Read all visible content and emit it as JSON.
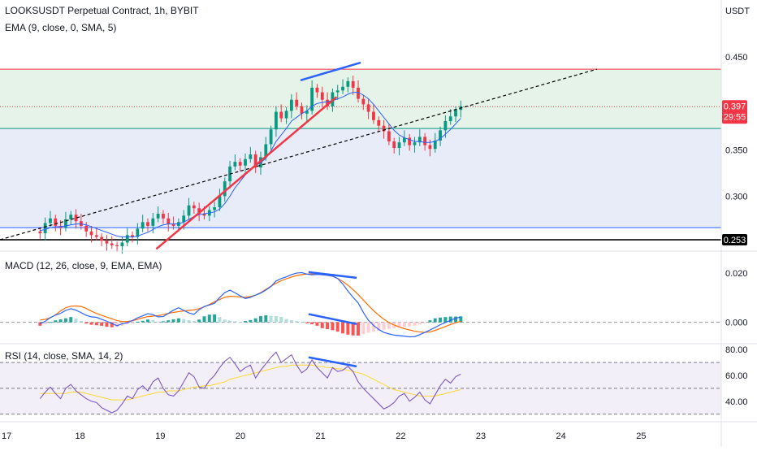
{
  "chart_data": {
    "type": "candlestick",
    "symbol_title": "LOOKSUSDT Perpetual Contract, 1h, BYBIT",
    "ema_legend": "EMA (9, close, 0, SMA, 5)",
    "price_axis_unit": "USDT",
    "price_ticks": [
      "0.450",
      "0.400",
      "0.350",
      "0.300"
    ],
    "price_tick_values": [
      0.45,
      0.4,
      0.35,
      0.3
    ],
    "price_range": [
      0.2425,
      0.4695
    ],
    "current_price_label": "0.397",
    "current_price": 0.3965,
    "countdown_label": "29:55",
    "support_label": "0.253",
    "support_price": 0.253,
    "x_range": [
      17.0,
      26.0
    ],
    "x_ticks": [
      "17",
      "18",
      "19",
      "20",
      "21",
      "22",
      "23",
      "24",
      "25"
    ],
    "x_tick_values": [
      17,
      18,
      19,
      20,
      21,
      22,
      23,
      24,
      25
    ],
    "zones": [
      {
        "name": "upper",
        "from": 0.373,
        "to": 0.437,
        "color": "#e5f3e8"
      },
      {
        "name": "lower",
        "from": 0.266,
        "to": 0.373,
        "color": "#e8ebf8"
      }
    ],
    "hlines": [
      {
        "price": 0.437,
        "color": "#f23645"
      },
      {
        "price": 0.373,
        "color": "#089981"
      },
      {
        "price": 0.266,
        "color": "#2962ff"
      },
      {
        "price": 0.253,
        "color": "#000000"
      },
      {
        "price": 0.3965,
        "color": "#f23645",
        "dotted": true
      }
    ],
    "closes": [
      0.26,
      0.271,
      0.276,
      0.268,
      0.266,
      0.275,
      0.28,
      0.273,
      0.268,
      0.262,
      0.258,
      0.256,
      0.252,
      0.249,
      0.247,
      0.246,
      0.25,
      0.258,
      0.256,
      0.265,
      0.272,
      0.268,
      0.276,
      0.281,
      0.276,
      0.27,
      0.268,
      0.272,
      0.279,
      0.29,
      0.287,
      0.281,
      0.279,
      0.285,
      0.288,
      0.3,
      0.316,
      0.332,
      0.337,
      0.333,
      0.34,
      0.345,
      0.331,
      0.342,
      0.356,
      0.372,
      0.391,
      0.384,
      0.392,
      0.404,
      0.397,
      0.389,
      0.392,
      0.417,
      0.412,
      0.404,
      0.397,
      0.412,
      0.414,
      0.418,
      0.424,
      0.417,
      0.405,
      0.399,
      0.391,
      0.382,
      0.376,
      0.37,
      0.359,
      0.352,
      0.358,
      0.363,
      0.355,
      0.358,
      0.364,
      0.355,
      0.351,
      0.36,
      0.371,
      0.381,
      0.386,
      0.393,
      0.397
    ],
    "ema": [
      0.263,
      0.264,
      0.266,
      0.267,
      0.267,
      0.268,
      0.269,
      0.27,
      0.27,
      0.269,
      0.267,
      0.265,
      0.263,
      0.261,
      0.259,
      0.257,
      0.256,
      0.256,
      0.256,
      0.257,
      0.259,
      0.261,
      0.264,
      0.267,
      0.269,
      0.27,
      0.27,
      0.27,
      0.272,
      0.275,
      0.278,
      0.28,
      0.281,
      0.282,
      0.283,
      0.286,
      0.292,
      0.3,
      0.309,
      0.316,
      0.323,
      0.329,
      0.333,
      0.336,
      0.341,
      0.349,
      0.359,
      0.366,
      0.373,
      0.381,
      0.385,
      0.389,
      0.392,
      0.397,
      0.4,
      0.401,
      0.402,
      0.403,
      0.405,
      0.407,
      0.41,
      0.412,
      0.412,
      0.409,
      0.405,
      0.399,
      0.392,
      0.385,
      0.378,
      0.371,
      0.366,
      0.363,
      0.361,
      0.359,
      0.359,
      0.358,
      0.358,
      0.359,
      0.362,
      0.367,
      0.372,
      0.378,
      0.384
    ],
    "trendline_drawings": [
      {
        "name": "dashed-uptrend-line",
        "points": [
          [
            17.0,
            0.253
          ],
          [
            24.45,
            0.437
          ]
        ],
        "color": "#000000",
        "dashed": true
      },
      {
        "name": "red-support-line",
        "points": [
          [
            18.95,
            0.243
          ],
          [
            21.2,
            0.407
          ]
        ],
        "color": "#f23645"
      },
      {
        "name": "blue-price-high-line",
        "points": [
          [
            20.75,
            0.425
          ],
          [
            21.5,
            0.444
          ]
        ],
        "color": "#2962ff"
      }
    ],
    "macd": {
      "legend": "MACD (12, 26, close, 9, EMA, EMA)",
      "ticks": [
        "0.020",
        "0.000"
      ],
      "tick_values": [
        0.02,
        0.0
      ],
      "range": [
        -0.0077,
        0.0265
      ],
      "macd_line": [
        -0.0006,
        0.0004,
        0.0019,
        0.0029,
        0.0036,
        0.0048,
        0.0055,
        0.0049,
        0.0039,
        0.0028,
        0.0022,
        0.002,
        0.0012,
        0.0004,
        -0.0005,
        -0.0014,
        -0.0006,
        -0.0002,
        0.0007,
        0.0018,
        0.0026,
        0.0035,
        0.0031,
        0.0022,
        0.0023,
        0.0036,
        0.0049,
        0.0059,
        0.0048,
        0.0038,
        0.0032,
        0.0051,
        0.0064,
        0.007,
        0.0077,
        0.01,
        0.012,
        0.013,
        0.0119,
        0.0107,
        0.0096,
        0.0101,
        0.011,
        0.0118,
        0.013,
        0.0145,
        0.0167,
        0.0177,
        0.0184,
        0.0193,
        0.0199,
        0.0201,
        0.0195,
        0.0192,
        0.0194,
        0.0192,
        0.019,
        0.0187,
        0.0177,
        0.0155,
        0.0126,
        0.0101,
        0.0078,
        0.004,
        0.0008,
        -0.0013,
        -0.0029,
        -0.0041,
        -0.0047,
        -0.0052,
        -0.0054,
        -0.0056,
        -0.0059,
        -0.0058,
        -0.005,
        -0.0041,
        -0.0031,
        -0.0021,
        -0.001,
        -0.0001,
        0.0008,
        0.0016,
        0.0022
      ],
      "signal_line": [
        0.0009,
        0.0012,
        0.0018,
        0.003,
        0.0046,
        0.0059,
        0.0065,
        0.0066,
        0.0064,
        0.0056,
        0.0045,
        0.0036,
        0.0028,
        0.0021,
        0.0014,
        0.0007,
        0.0003,
        0.0003,
        0.0006,
        0.0012,
        0.0018,
        0.0023,
        0.0025,
        0.0027,
        0.0031,
        0.0036,
        0.004,
        0.0043,
        0.0046,
        0.0048,
        0.005,
        0.0055,
        0.0062,
        0.0072,
        0.0083,
        0.0092,
        0.0101,
        0.0105,
        0.0104,
        0.0102,
        0.0101,
        0.0104,
        0.011,
        0.012,
        0.0133,
        0.0146,
        0.0158,
        0.0168,
        0.0176,
        0.0183,
        0.0189,
        0.0193,
        0.0195,
        0.0195,
        0.0195,
        0.0193,
        0.019,
        0.0186,
        0.0177,
        0.0165,
        0.015,
        0.0132,
        0.0112,
        0.009,
        0.0068,
        0.0047,
        0.0029,
        0.0012,
        -0.0001,
        -0.0011,
        -0.0019,
        -0.0026,
        -0.0031,
        -0.0036,
        -0.0039,
        -0.0041,
        -0.0039,
        -0.0033,
        -0.0025,
        -0.0017,
        -0.0009,
        -0.0002,
        0.0004
      ],
      "histogram": [
        -0.0014,
        -0.0008,
        0.0001,
        0.0008,
        0.0012,
        0.0016,
        0.0021,
        0.0015,
        0.0005,
        -0.0005,
        -0.001,
        -0.0012,
        -0.0014,
        -0.0018,
        -0.002,
        -0.0019,
        -0.0014,
        -0.0008,
        -0.0004,
        0.0002,
        0.0006,
        0.0011,
        0.0009,
        0.0003,
        0.0004,
        0.0008,
        0.0012,
        0.0016,
        0.0013,
        0.0008,
        0.0005,
        0.0011,
        0.0024,
        0.0031,
        0.0032,
        0.0021,
        0.0011,
        0.0007,
        0.0004,
        0.0001,
        0.0005,
        0.0009,
        0.0016,
        0.0025,
        0.0028,
        0.0026,
        0.0025,
        0.0022,
        0.0013,
        0.0008,
        0.0004,
        0.0001,
        -0.0004,
        -0.0008,
        -0.0014,
        -0.0024,
        -0.0028,
        -0.0032,
        -0.0038,
        -0.0045,
        -0.005,
        -0.0053,
        -0.0054,
        -0.0048,
        -0.0042,
        -0.0038,
        -0.0035,
        -0.003,
        -0.0027,
        -0.0024,
        -0.0022,
        -0.0019,
        -0.0016,
        -0.0013,
        -0.0009,
        -0.0004,
        0.0008,
        0.0016,
        0.0019,
        0.0021,
        0.0023,
        0.0023,
        0.0024
      ],
      "divergence_drawings": [
        {
          "name": "macd-upper-divergence-line",
          "points": [
            [
              20.85,
              0.0203
            ],
            [
              21.45,
              0.018
            ]
          ]
        },
        {
          "name": "macd-lower-divergence-line",
          "points": [
            [
              20.85,
              0.0033
            ],
            [
              21.45,
              -0.0007
            ]
          ]
        }
      ]
    },
    "rsi": {
      "legend": "RSI (14, close, SMA, 14, 2)",
      "ticks": [
        "80.00",
        "60.00",
        "40.00"
      ],
      "tick_values": [
        80,
        60,
        40
      ],
      "range": [
        26,
        82
      ],
      "bands": [
        70,
        50,
        30
      ],
      "rsi_line": [
        42,
        47,
        51,
        46,
        42,
        50,
        53,
        48,
        45,
        42,
        40,
        39,
        35,
        33,
        31,
        33,
        38,
        44,
        42,
        49,
        52,
        48,
        55,
        58,
        50,
        45,
        44,
        48,
        55,
        62,
        59,
        51,
        50,
        56,
        60,
        66,
        71,
        74,
        69,
        63,
        66,
        68,
        58,
        64,
        69,
        74,
        78,
        70,
        73,
        76,
        68,
        62,
        65,
        72,
        66,
        62,
        58,
        66,
        63,
        64,
        67,
        63,
        55,
        50,
        46,
        42,
        38,
        34,
        36,
        39,
        44,
        46,
        40,
        43,
        47,
        41,
        38,
        45,
        52,
        57,
        54,
        59,
        61
      ],
      "sma_line": [
        46,
        46,
        46,
        46,
        46,
        46,
        47,
        47,
        47,
        46,
        45,
        44,
        43,
        42,
        41,
        41,
        41,
        41,
        42,
        43,
        44,
        45,
        46,
        47,
        47,
        48,
        48,
        48,
        49,
        50,
        51,
        51,
        52,
        52,
        53,
        54,
        55,
        57,
        58,
        59,
        60,
        61,
        62,
        63,
        64,
        65,
        66,
        67,
        67,
        68,
        68,
        68,
        68,
        68,
        67,
        67,
        66,
        66,
        65,
        65,
        64,
        63,
        62,
        61,
        59,
        57,
        55,
        53,
        51,
        49,
        48,
        47,
        46,
        45,
        44,
        44,
        44,
        44,
        45,
        46,
        47,
        48,
        49
      ],
      "divergence_drawings": [
        {
          "name": "rsi-divergence-line",
          "points": [
            [
              20.85,
              74
            ],
            [
              21.45,
              67
            ]
          ]
        }
      ]
    },
    "colors": {
      "up": "#089981",
      "down": "#f23645",
      "ema": "#2962ff",
      "macd": "#2962ff",
      "signal": "#ff6d00",
      "rsi": "#7e57c2",
      "rsi_sma": "#fdd835",
      "divergence": "#2962ff"
    }
  }
}
